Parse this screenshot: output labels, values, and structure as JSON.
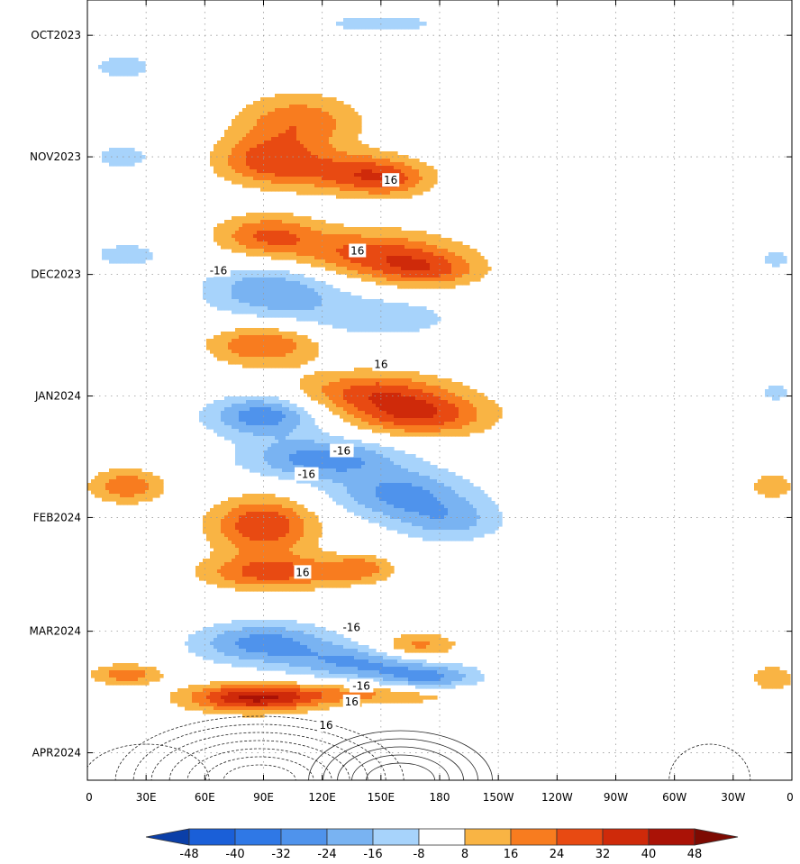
{
  "chart_data": {
    "type": "heatmap",
    "title": "",
    "xlabel": "",
    "ylabel": "",
    "x_ticks": [
      "0",
      "30E",
      "60E",
      "90E",
      "120E",
      "150E",
      "180",
      "150W",
      "120W",
      "90W",
      "60W",
      "30W",
      "0"
    ],
    "x_range_deg_east": [
      0,
      360
    ],
    "y_ticks": [
      "OCT2023",
      "NOV2023",
      "DEC2023",
      "JAN2024",
      "FEB2024",
      "MAR2024",
      "APR2024"
    ],
    "y_range": [
      "2023-09-22",
      "2024-04-08"
    ],
    "grid": true,
    "colorbar": {
      "labels": [
        "-48",
        "-40",
        "-32",
        "-24",
        "-16",
        "-8",
        "8",
        "16",
        "24",
        "32",
        "40",
        "48"
      ],
      "levels": [
        -48,
        -40,
        -32,
        -24,
        -16,
        -8,
        8,
        16,
        24,
        32,
        40,
        48
      ],
      "colors": [
        "#0b3fa8",
        "#1a5fd8",
        "#2f78e6",
        "#4f93ec",
        "#79b3f2",
        "#a7d3fb",
        "#ffffff",
        "#f9b444",
        "#f87c1f",
        "#e84a12",
        "#cf2a0a",
        "#aa1206",
        "#7d0a02"
      ]
    },
    "contour_labels": [
      "16",
      "16",
      "-16",
      "16",
      "-16",
      "-16",
      "16",
      "-16",
      "-16",
      "16",
      "16"
    ],
    "blobs": [
      {
        "lon": 108,
        "date": "2023-10-23",
        "wlon": 36,
        "wdays": 8,
        "value": 22
      },
      {
        "lon": 92,
        "date": "2023-11-02",
        "wlon": 30,
        "wdays": 7,
        "value": 26
      },
      {
        "lon": 135,
        "date": "2023-11-05",
        "wlon": 36,
        "wdays": 6,
        "value": 24
      },
      {
        "lon": 155,
        "date": "2023-11-07",
        "wlon": 25,
        "wdays": 5,
        "value": 16
      },
      {
        "lon": 150,
        "date": "2023-09-28",
        "wlon": 40,
        "wdays": 3,
        "value": -12
      },
      {
        "lon": 18,
        "date": "2023-10-09",
        "wlon": 22,
        "wdays": 4,
        "value": -12
      },
      {
        "lon": 18,
        "date": "2023-11-01",
        "wlon": 20,
        "wdays": 4,
        "value": -12
      },
      {
        "lon": 92,
        "date": "2023-11-21",
        "wlon": 30,
        "wdays": 6,
        "value": 24
      },
      {
        "lon": 145,
        "date": "2023-11-26",
        "wlon": 48,
        "wdays": 7,
        "value": 28
      },
      {
        "lon": 175,
        "date": "2023-11-30",
        "wlon": 30,
        "wdays": 5,
        "value": 20
      },
      {
        "lon": 20,
        "date": "2023-11-26",
        "wlon": 24,
        "wdays": 4,
        "value": -12
      },
      {
        "lon": 95,
        "date": "2023-12-05",
        "wlon": 40,
        "wdays": 8,
        "value": -24
      },
      {
        "lon": 150,
        "date": "2023-12-12",
        "wlon": 45,
        "wdays": 6,
        "value": -14
      },
      {
        "lon": 90,
        "date": "2023-12-19",
        "wlon": 32,
        "wdays": 6,
        "value": 24
      },
      {
        "lon": 145,
        "date": "2023-12-31",
        "wlon": 45,
        "wdays": 6,
        "value": 26
      },
      {
        "lon": 170,
        "date": "2024-01-06",
        "wlon": 40,
        "wdays": 6,
        "value": 30
      },
      {
        "lon": 90,
        "date": "2024-01-06",
        "wlon": 32,
        "wdays": 6,
        "value": -30
      },
      {
        "lon": 120,
        "date": "2024-01-17",
        "wlon": 45,
        "wdays": 6,
        "value": -28
      },
      {
        "lon": 160,
        "date": "2024-01-26",
        "wlon": 40,
        "wdays": 7,
        "value": -26
      },
      {
        "lon": 185,
        "date": "2024-02-02",
        "wlon": 32,
        "wdays": 6,
        "value": -18
      },
      {
        "lon": 20,
        "date": "2024-01-24",
        "wlon": 22,
        "wdays": 5,
        "value": 22
      },
      {
        "lon": 90,
        "date": "2024-02-03",
        "wlon": 30,
        "wdays": 8,
        "value": 32
      },
      {
        "lon": 95,
        "date": "2024-02-15",
        "wlon": 40,
        "wdays": 5,
        "value": 28
      },
      {
        "lon": 140,
        "date": "2024-02-14",
        "wlon": 18,
        "wdays": 4,
        "value": 18
      },
      {
        "lon": 90,
        "date": "2024-03-04",
        "wlon": 40,
        "wdays": 6,
        "value": -28
      },
      {
        "lon": 140,
        "date": "2024-03-09",
        "wlon": 40,
        "wdays": 5,
        "value": -24
      },
      {
        "lon": 175,
        "date": "2024-03-13",
        "wlon": 30,
        "wdays": 4,
        "value": -24
      },
      {
        "lon": 168,
        "date": "2024-03-05",
        "wlon": 24,
        "wdays": 4,
        "value": 22
      },
      {
        "lon": 20,
        "date": "2024-03-12",
        "wlon": 20,
        "wdays": 3,
        "value": 22
      },
      {
        "lon": 85,
        "date": "2024-03-18",
        "wlon": 38,
        "wdays": 4,
        "value": 40
      },
      {
        "lon": 150,
        "date": "2024-03-17",
        "wlon": 55,
        "wdays": 3,
        "value": 18
      },
      {
        "lon": 350,
        "date": "2024-01-24",
        "wlon": 14,
        "wdays": 4,
        "value": 14
      },
      {
        "lon": 350,
        "date": "2024-03-13",
        "wlon": 14,
        "wdays": 4,
        "value": 14
      },
      {
        "lon": 352,
        "date": "2023-11-27",
        "wlon": 10,
        "wdays": 3,
        "value": -12
      },
      {
        "lon": 352,
        "date": "2023-12-31",
        "wlon": 10,
        "wdays": 3,
        "value": -12
      }
    ]
  }
}
